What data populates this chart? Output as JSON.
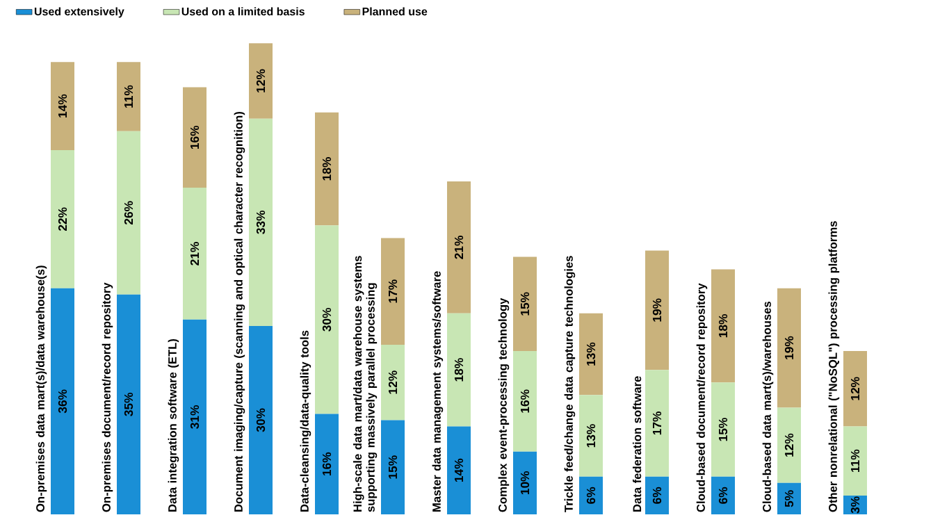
{
  "chart_data": {
    "type": "bar",
    "stacked": true,
    "legend": "top left",
    "categories": [
      "On-premises data mart(s)/data warehouse(s)",
      "On-premises document/record repository",
      "Data integration software (ETL)",
      "Document imaging/capture (scanning and optical character recognition)",
      "Data-cleansing/data-quality tools",
      "High-scale data mart/data warehouse systems supporting massively parallel processing",
      "Master data management systems/software",
      "Complex event-processing technology",
      "Trickle feed/change data capture technologies",
      "Data federation software",
      "Cloud-based document/record repository",
      "Cloud-based data mart(s)/warehouses",
      "Other nonrelational (\"NoSQL\") processing platforms"
    ],
    "series": [
      {
        "name": "Used extensively",
        "color": "#1a8fd6",
        "values": [
          36,
          35,
          31,
          30,
          16,
          15,
          14,
          10,
          6,
          6,
          6,
          5,
          3
        ],
        "value_labels": [
          "36%",
          "35%",
          "31%",
          "30%",
          "16%",
          "15%",
          "14%",
          "10%",
          "6%",
          "6%",
          "6%",
          "5%",
          "3%"
        ]
      },
      {
        "name": "Used on a limited basis",
        "color": "#c8e6b4",
        "values": [
          22,
          26,
          21,
          33,
          30,
          12,
          18,
          16,
          13,
          17,
          15,
          12,
          11
        ],
        "value_labels": [
          "22%",
          "26%",
          "21%",
          "33%",
          "30%",
          "12%",
          "18%",
          "16%",
          "13%",
          "17%",
          "15%",
          "12%",
          "11%"
        ]
      },
      {
        "name": "Planned use",
        "color": "#c9b27c",
        "values": [
          14,
          11,
          16,
          12,
          18,
          17,
          21,
          15,
          13,
          19,
          18,
          19,
          12
        ],
        "value_labels": [
          "14%",
          "11%",
          "16%",
          "12%",
          "18%",
          "17%",
          "21%",
          "15%",
          "13%",
          "19%",
          "18%",
          "19%",
          "12%"
        ]
      }
    ]
  }
}
